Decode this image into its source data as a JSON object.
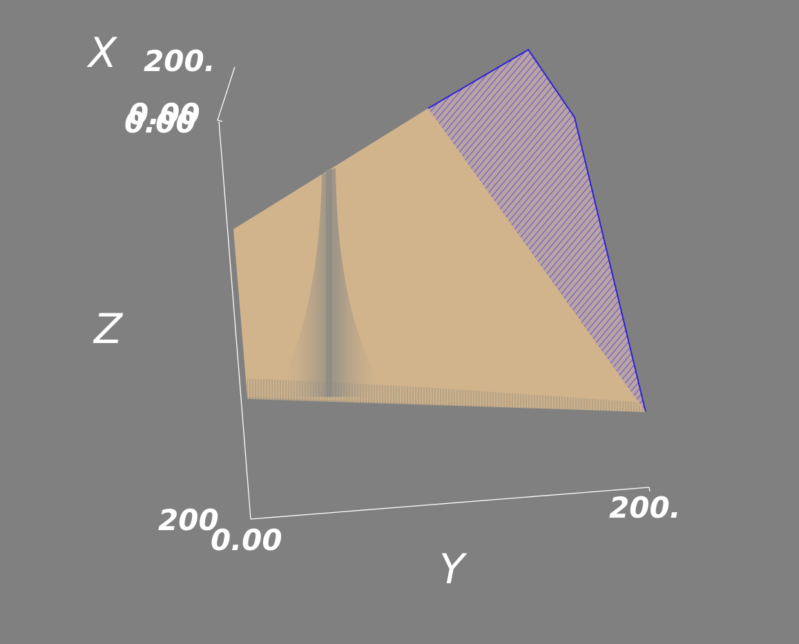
{
  "scene": {
    "background_color": "#808080",
    "axis_color": "#ffffff",
    "surface_color": "#d2b48c",
    "edge_color": "#3a2fd0"
  },
  "axes": {
    "x": {
      "title": "X",
      "ticks": [
        "200.",
        "0.00",
        "0.00"
      ]
    },
    "y": {
      "title": "Y",
      "ticks": [
        "0.00",
        "200."
      ]
    },
    "z": {
      "title": "Z",
      "ticks": [
        "200"
      ]
    }
  }
}
